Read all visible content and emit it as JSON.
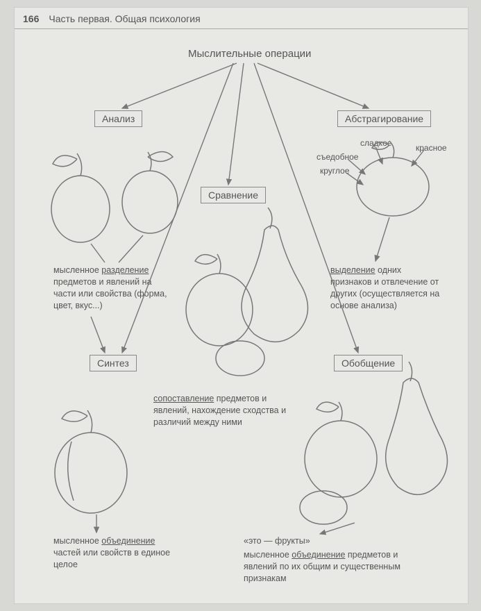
{
  "header": {
    "page_number": "166",
    "part_label": "Часть первая. Общая психология"
  },
  "title": "Мыслительные операции",
  "boxes": {
    "analysis": "Анализ",
    "abstraction": "Абстрагирование",
    "comparison": "Сравнение",
    "synthesis": "Синтез",
    "generalization": "Обобщение"
  },
  "labels": {
    "sweet": "сладкое",
    "red": "красное",
    "edible": "съедобное",
    "round": "круглое"
  },
  "descriptions": {
    "analysis": "мысленное <span class='u'>разделение</span> предметов и явлений на части или свойства (форма, цвет, вкус...)",
    "abstraction": "<span class='u'>выделение</span> одних признаков и отвлечение от других (осуществляется на основе анализа)",
    "comparison": "<span class='u'>сопоставление</span> предметов и явлений, нахождение сходства и различий между ними",
    "synthesis": "мысленное <span class='u'>объединение</span> частей или свойств в единое целое",
    "generalization_quote": "«это — фрукты»",
    "generalization": "мысленное <span class='u'>объединение</span> предметов и явлений по их общим и существенным признакам"
  },
  "style": {
    "bg": "#e8e8e4",
    "stroke": "#777",
    "text_color": "#555",
    "border_color": "#888",
    "font_size_title": 15,
    "font_size_box": 14,
    "font_size_text": 12.5
  }
}
